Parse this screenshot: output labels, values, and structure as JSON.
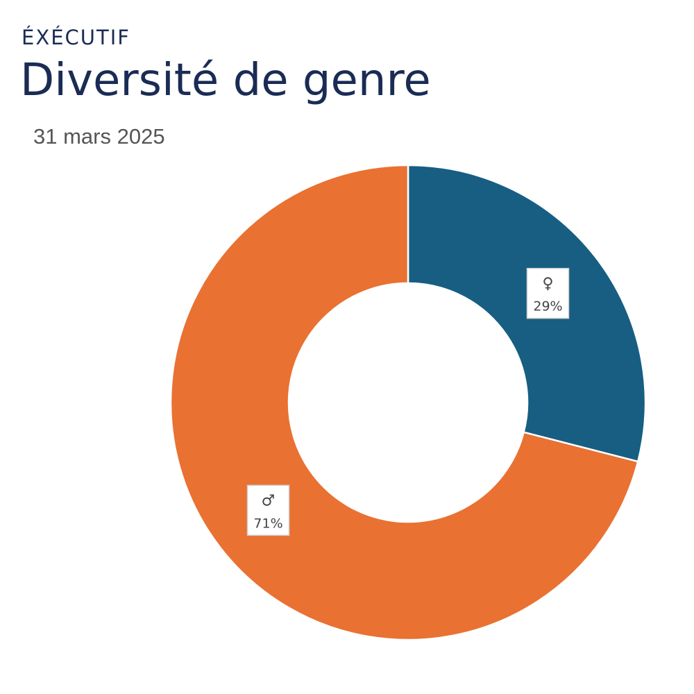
{
  "header": {
    "kicker": "ÉXÉCUTIF",
    "title": "Diversité de genre",
    "date": "31 mars 2025"
  },
  "chart_data": {
    "type": "pie",
    "variant": "donut",
    "title": "Diversité de genre",
    "subtitle": "31 mars 2025",
    "legend": "none",
    "slices": [
      {
        "label": "♀",
        "value": 29,
        "value_label": "29%",
        "color": "#175e82"
      },
      {
        "label": "♂",
        "value": 71,
        "value_label": "71%",
        "color": "#e97132"
      }
    ]
  }
}
